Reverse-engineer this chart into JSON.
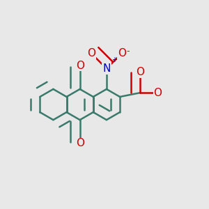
{
  "bg_color": "#e8e8e8",
  "bond_color": "#3a7a6a",
  "bond_width": 1.8,
  "atom_colors": {
    "O": "#cc0000",
    "N": "#0000cc"
  },
  "font_size_atom": 11
}
